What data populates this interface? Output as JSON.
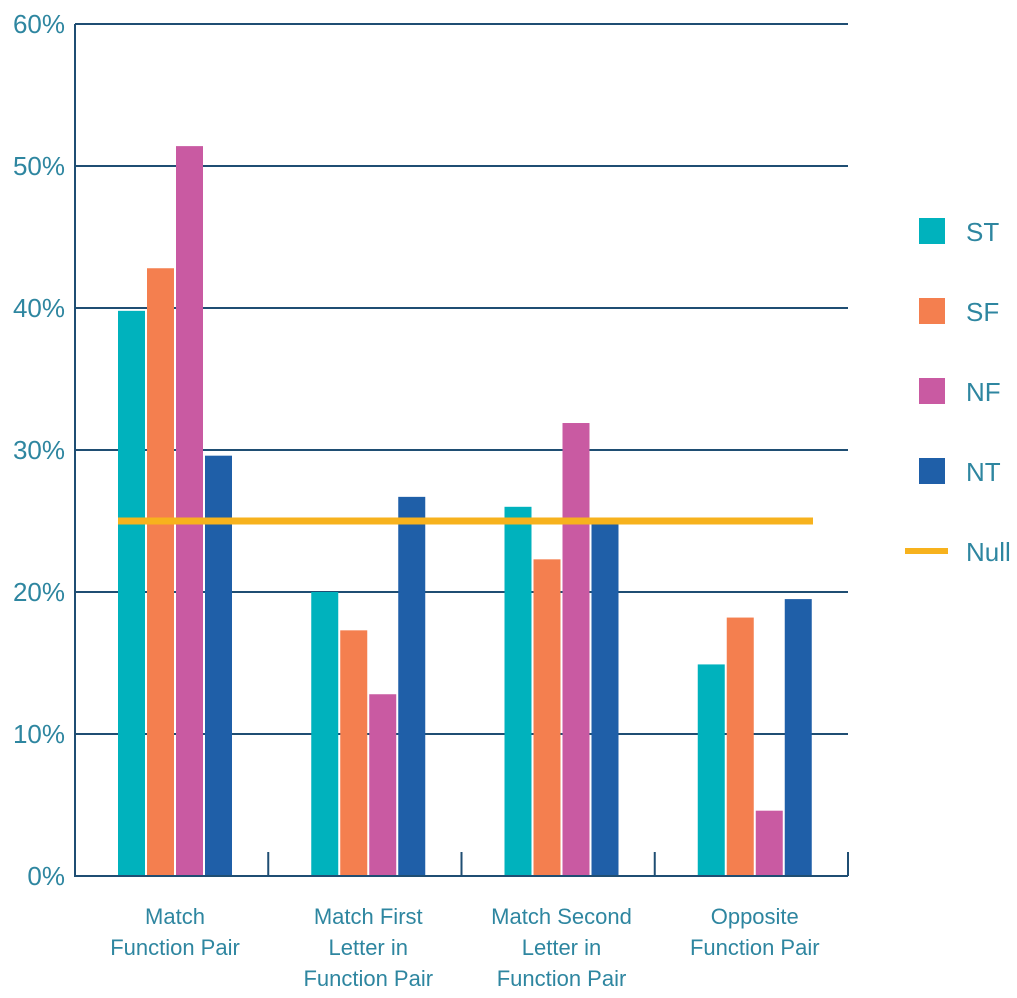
{
  "chart_data": {
    "type": "bar",
    "categories": [
      [
        "Match",
        "Function Pair"
      ],
      [
        "Match First",
        "Letter in",
        "Function Pair"
      ],
      [
        "Match Second",
        "Letter in",
        "Function Pair"
      ],
      [
        "Opposite",
        "Function Pair"
      ]
    ],
    "series": [
      {
        "name": "ST",
        "color": "#00b2bd",
        "values": [
          39.8,
          20.0,
          26.0,
          14.9
        ]
      },
      {
        "name": "SF",
        "color": "#f47f4f",
        "values": [
          42.8,
          17.3,
          22.3,
          18.2
        ]
      },
      {
        "name": "NF",
        "color": "#c95aa2",
        "values": [
          51.4,
          12.8,
          31.9,
          4.6
        ]
      },
      {
        "name": "NT",
        "color": "#1f5fa8",
        "values": [
          29.6,
          26.7,
          25.0,
          19.5
        ]
      }
    ],
    "reference_line": {
      "name": "Null",
      "value": 25,
      "color": "#f7b21d"
    },
    "ylim": [
      0,
      60
    ],
    "yticks": [
      0,
      10,
      20,
      30,
      40,
      50,
      60
    ],
    "ytick_labels": [
      "0%",
      "10%",
      "20%",
      "30%",
      "40%",
      "50%",
      "60%"
    ],
    "grid": true,
    "legend": "right",
    "colors": {
      "axis": "#1f4e73",
      "text": "#2e86a0"
    }
  }
}
